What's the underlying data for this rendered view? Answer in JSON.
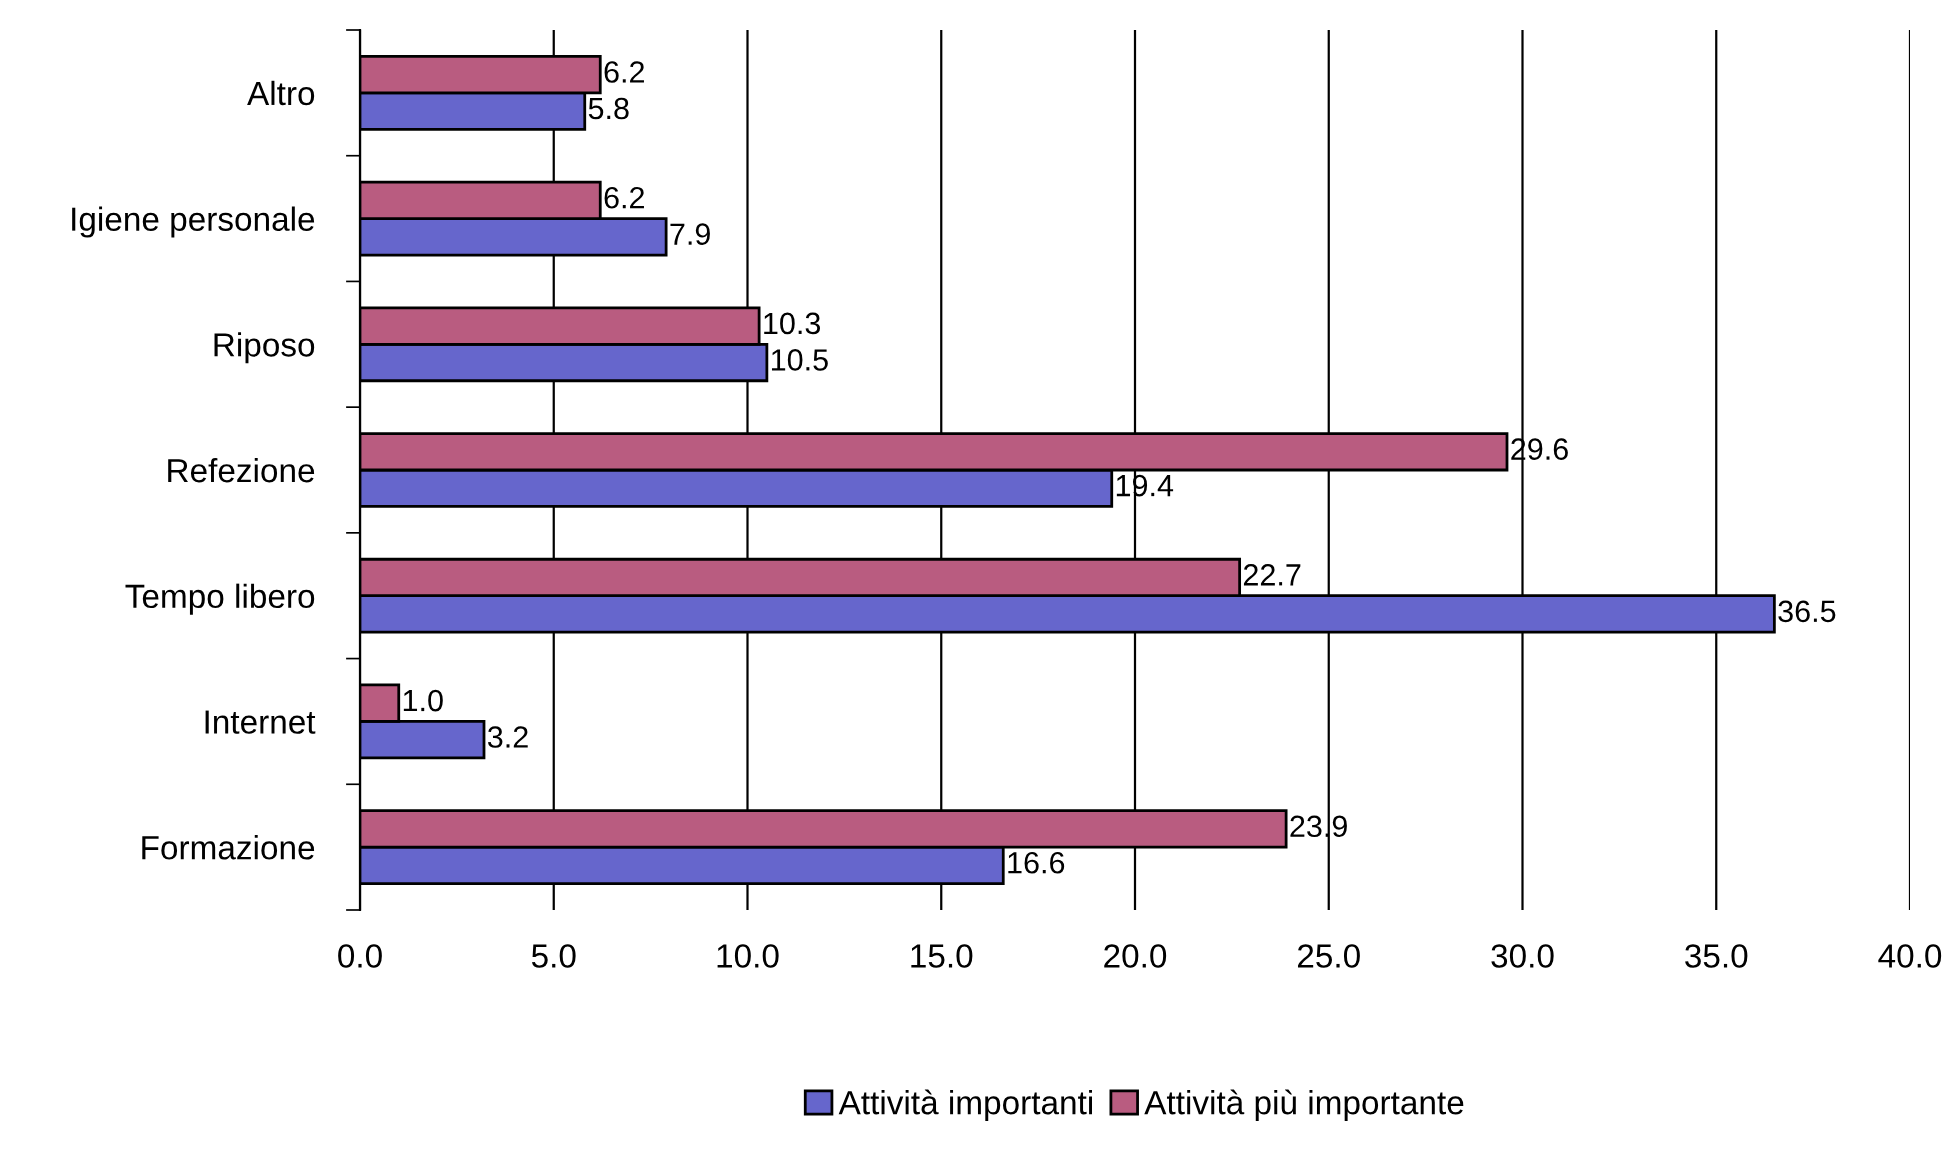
{
  "chart_data": {
    "type": "bar",
    "orientation": "horizontal",
    "categories": [
      "Altro",
      "Igiene personale",
      "Riposo",
      "Refezione",
      "Tempo libero",
      "Internet",
      "Formazione"
    ],
    "series": [
      {
        "name": "Attività importanti",
        "color": "#6666cc",
        "values": [
          5.8,
          7.9,
          10.5,
          19.4,
          36.5,
          3.2,
          16.6
        ],
        "value_labels": [
          "5.8",
          "7.9",
          "10.5",
          "19.4",
          "36.5",
          "3.2",
          "16.6"
        ]
      },
      {
        "name": "Attività più importante",
        "color": "#b95c80",
        "values": [
          6.2,
          6.2,
          10.3,
          29.6,
          22.7,
          1.0,
          23.9
        ],
        "value_labels": [
          "6.2",
          "6.2",
          "10.3",
          "29.6",
          "22.7",
          "1.0",
          "23.9"
        ]
      }
    ],
    "xlim": [
      0,
      40
    ],
    "xticks": [
      {
        "value": 0,
        "label": "0.0"
      },
      {
        "value": 5,
        "label": "5.0"
      },
      {
        "value": 10,
        "label": "10.0"
      },
      {
        "value": 15,
        "label": "15.0"
      },
      {
        "value": 20,
        "label": "20.0"
      },
      {
        "value": 25,
        "label": "25.0"
      },
      {
        "value": 30,
        "label": "30.0"
      },
      {
        "value": 35,
        "label": "35.0"
      },
      {
        "value": 40,
        "label": "40.0"
      }
    ],
    "grid": "x",
    "legend": "bottom"
  }
}
